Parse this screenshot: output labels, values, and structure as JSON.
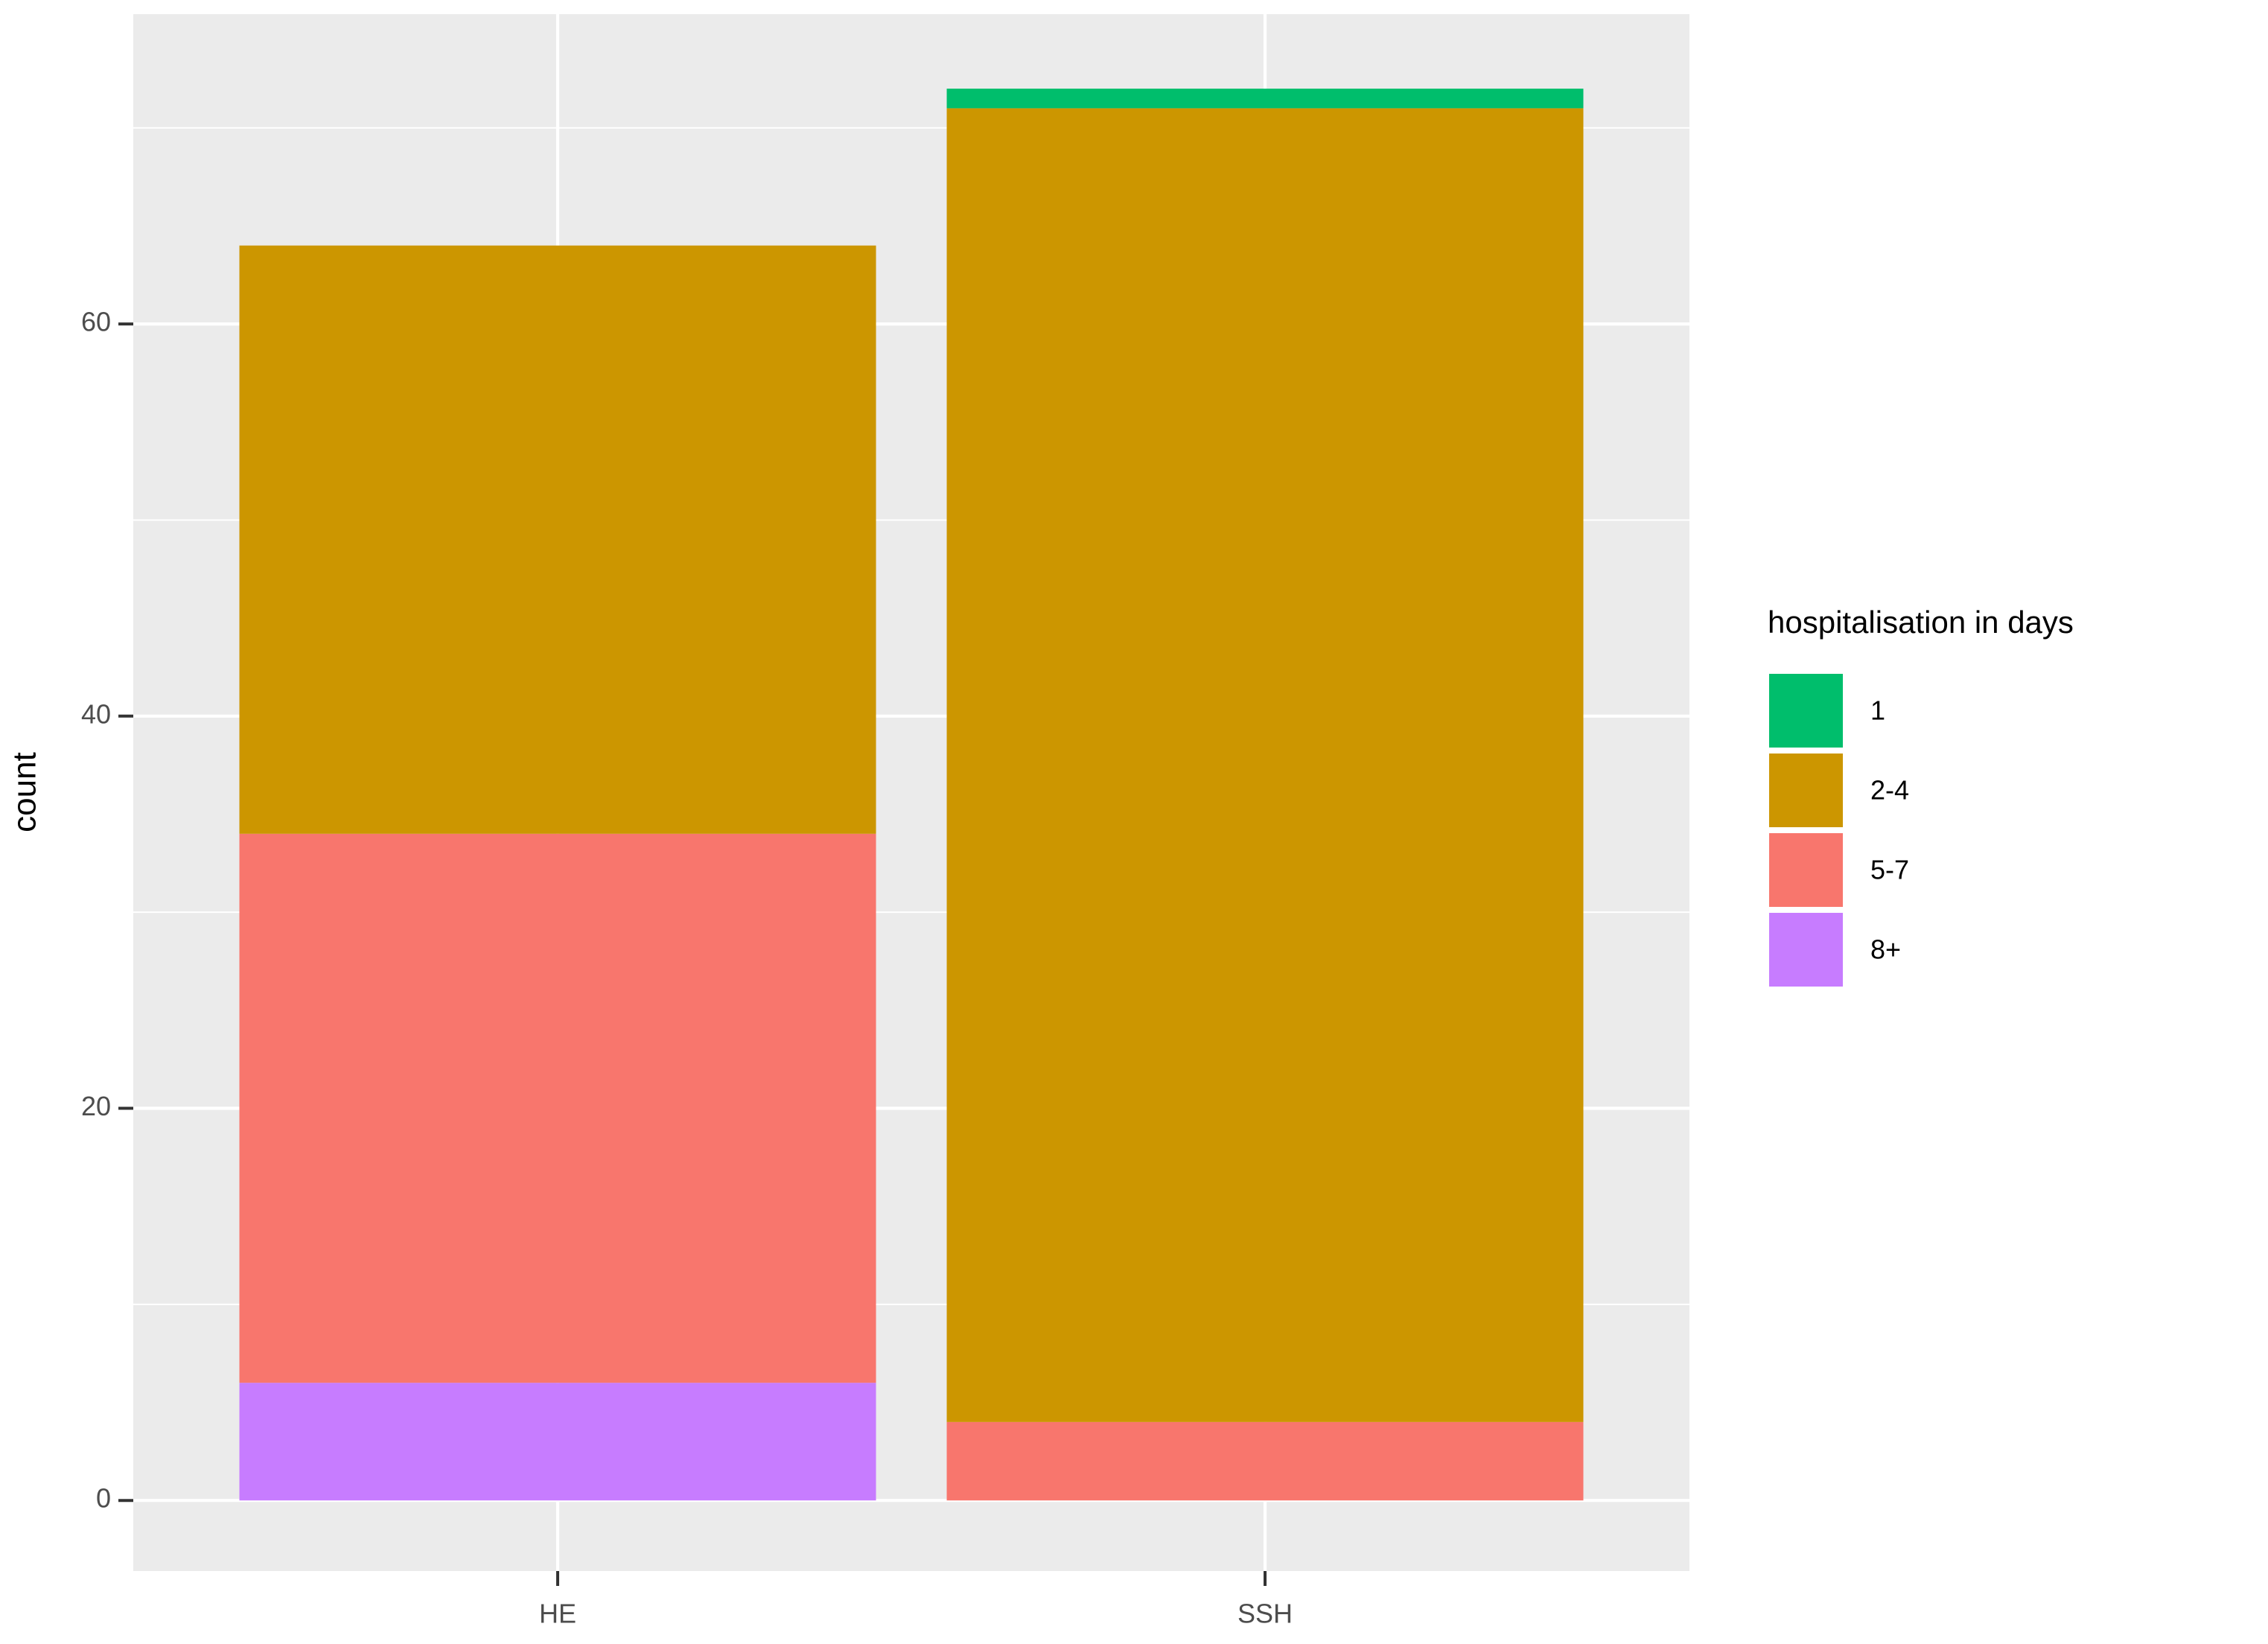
{
  "chart_data": {
    "type": "stacked_bar",
    "y_axis_label": "count",
    "legend_title": "hospitalisation in days",
    "legend_position": "right",
    "categories": [
      "HE",
      "SSH"
    ],
    "series": [
      {
        "name": "1",
        "color": "#00BE6C",
        "values": [
          0,
          1
        ]
      },
      {
        "name": "2-4",
        "color": "#CC9600",
        "values": [
          30,
          67
        ]
      },
      {
        "name": "5-7",
        "color": "#F8766D",
        "values": [
          28,
          4
        ]
      },
      {
        "name": "8+",
        "color": "#C77CFF",
        "values": [
          6,
          0
        ]
      }
    ],
    "ylim": [
      -3.6,
      75.8
    ],
    "yticks": [
      0,
      20,
      40,
      60
    ],
    "y_minor_ticks": [
      10,
      30,
      50,
      70
    ],
    "grid": true
  }
}
